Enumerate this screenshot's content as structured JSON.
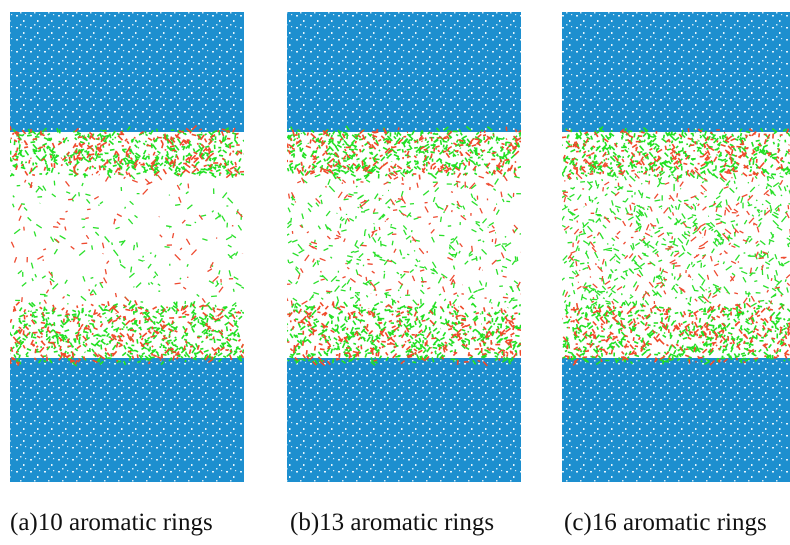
{
  "panels": [
    {
      "caption": "(a)10 aromatic rings"
    },
    {
      "caption": "(b)13 aromatic rings"
    },
    {
      "caption": "(c)16 aromatic rings"
    }
  ]
}
